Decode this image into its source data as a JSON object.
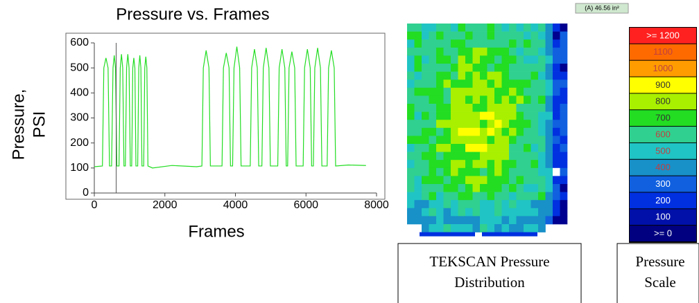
{
  "chart_data": {
    "type": "line",
    "title": "Pressure vs. Frames",
    "x_label": "Frames",
    "y_label": [
      "Pressure,",
      "PSI"
    ],
    "x": [
      0,
      230,
      270,
      330,
      390,
      430,
      490,
      530,
      565,
      600,
      640,
      700,
      735,
      770,
      805,
      840,
      880,
      915,
      950,
      985,
      1020,
      1060,
      1090,
      1120,
      1150,
      1180,
      1230,
      1260,
      1290,
      1320,
      1350,
      1400,
      1430,
      1460,
      1490,
      1520,
      1650,
      2200,
      2900,
      3050,
      3090,
      3170,
      3250,
      3290,
      3620,
      3660,
      3740,
      3820,
      3860,
      3920,
      3960,
      4040,
      4120,
      4160,
      4420,
      4460,
      4540,
      4620,
      4660,
      4750,
      4790,
      4870,
      4950,
      4990,
      5200,
      5240,
      5320,
      5400,
      5440,
      5480,
      5520,
      5600,
      5680,
      5720,
      5920,
      5960,
      6040,
      6120,
      6160,
      6210,
      6250,
      6330,
      6410,
      6450,
      6600,
      6640,
      6720,
      6800,
      6840,
      7200,
      7700
    ],
    "series": [
      {
        "color": "#22dd22",
        "values": [
          105,
          108,
          500,
          540,
          500,
          108,
          108,
          500,
          550,
          500,
          108,
          108,
          500,
          555,
          500,
          108,
          108,
          500,
          555,
          500,
          108,
          108,
          500,
          540,
          500,
          108,
          108,
          500,
          550,
          500,
          108,
          108,
          500,
          545,
          500,
          108,
          100,
          110,
          105,
          108,
          500,
          570,
          500,
          108,
          108,
          500,
          560,
          500,
          108,
          108,
          500,
          585,
          500,
          108,
          108,
          500,
          575,
          500,
          108,
          108,
          500,
          580,
          500,
          108,
          108,
          500,
          575,
          500,
          108,
          108,
          500,
          565,
          500,
          108,
          108,
          500,
          575,
          500,
          108,
          108,
          500,
          580,
          500,
          108,
          108,
          500,
          570,
          500,
          108,
          112,
          110
        ]
      }
    ],
    "cursor_x": 620,
    "xlim": [
      0,
      8000
    ],
    "xticks": [
      0,
      2000,
      4000,
      6000,
      8000
    ],
    "ylim": [
      0,
      600
    ],
    "yticks": [
      0,
      100,
      200,
      300,
      400,
      500,
      600
    ]
  },
  "pressure_map": {
    "area_label": "(A) 46.56 in²",
    "caption": "TEKSCAN Pressure Distribution"
  },
  "pressure_scale": {
    "labels": [
      ">= 1200",
      "1100",
      "1000",
      "900",
      "800",
      "700",
      "600",
      "500",
      "400",
      "300",
      "200",
      "100",
      ">= 0"
    ],
    "colors": [
      "#ff2020",
      "#ff6a00",
      "#ff9c00",
      "#ffff00",
      "#a8f000",
      "#22dd22",
      "#30d090",
      "#20c4c4",
      "#1890c8",
      "#1060e0",
      "#0030e0",
      "#0010a8",
      "#000080"
    ],
    "caption": "Pressure Scale"
  }
}
